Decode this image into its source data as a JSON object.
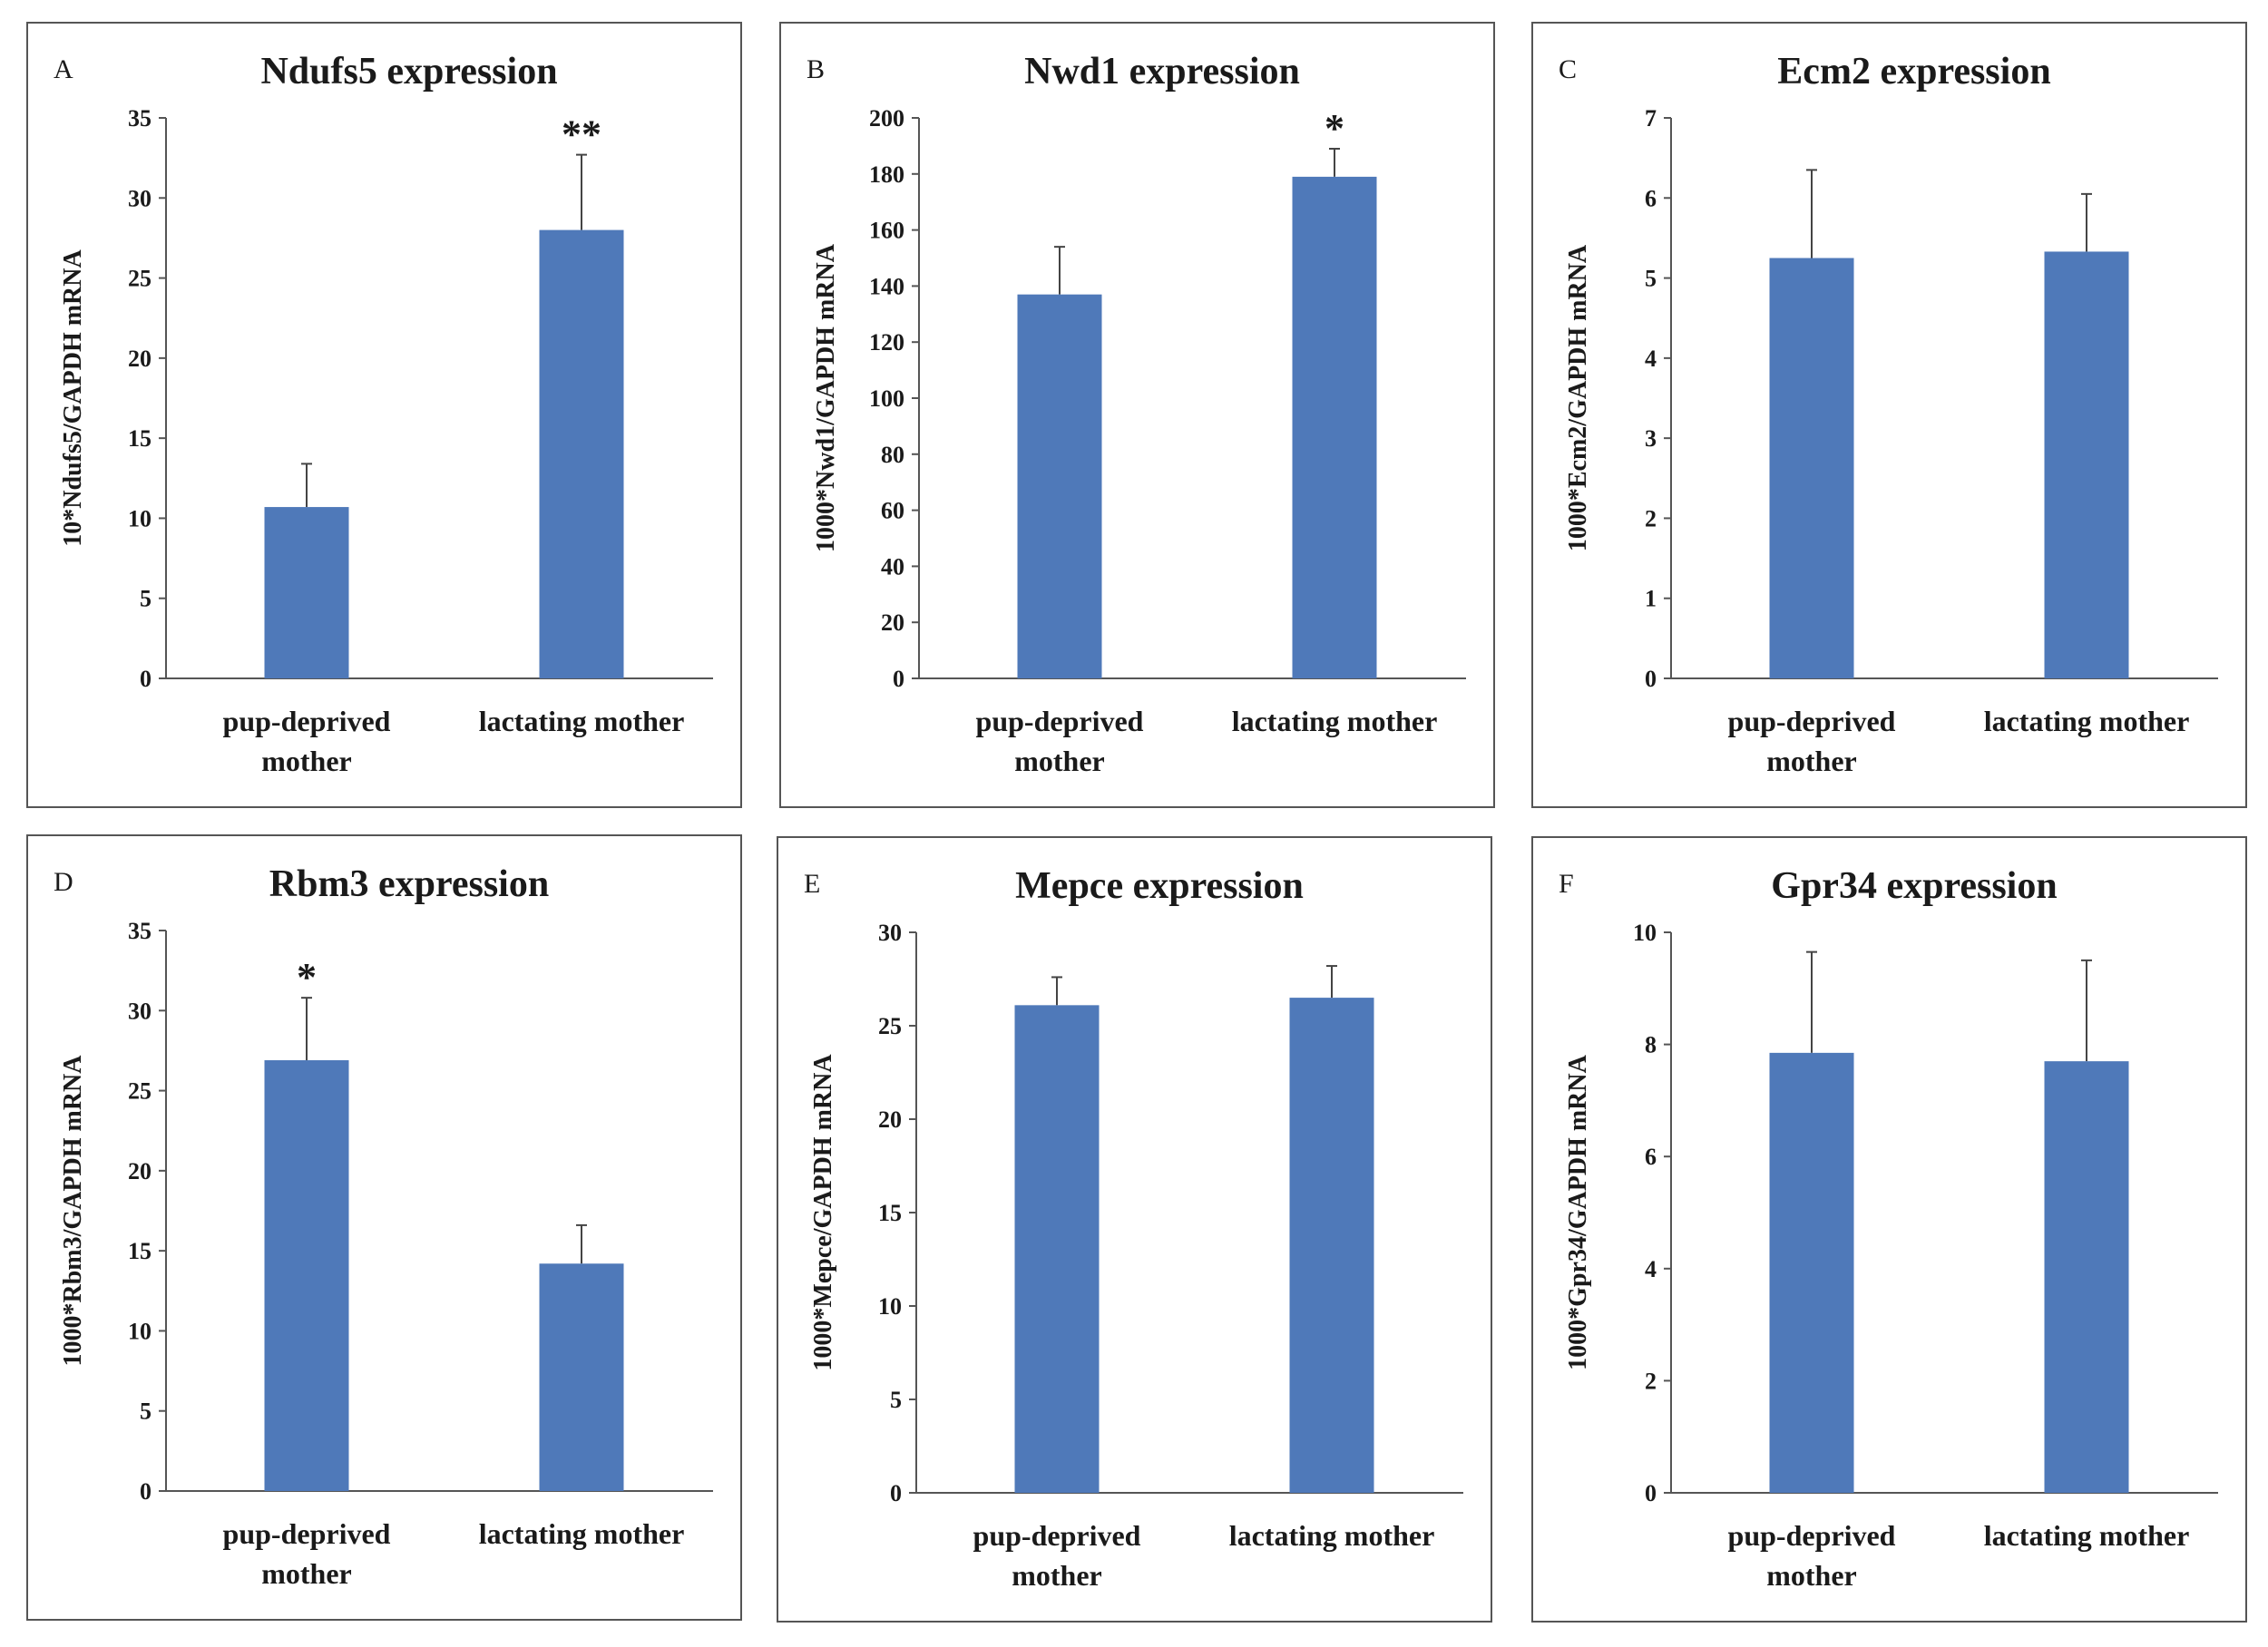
{
  "colors": {
    "bar": "#4f79b9",
    "axis": "#555555",
    "error": "#444444"
  },
  "chart_data": [
    {
      "type": "bar",
      "panel": "A",
      "title": "Ndufs5 expression",
      "ylabel": "10*Ndufs5/GAPDH mRNA",
      "categories": [
        "pup-deprived mother",
        "lactating mother"
      ],
      "category_lines": [
        [
          "pup-deprived",
          "mother"
        ],
        [
          "lactating mother"
        ]
      ],
      "values": [
        10.7,
        28.0
      ],
      "errors": [
        2.7,
        4.7
      ],
      "significance": [
        "",
        "**"
      ],
      "ylim": [
        0,
        35
      ],
      "yticks": [
        0,
        5,
        10,
        15,
        20,
        25,
        30,
        35
      ],
      "grid": false
    },
    {
      "type": "bar",
      "panel": "B",
      "title": "Nwd1 expression",
      "ylabel": "1000*Nwd1/GAPDH mRNA",
      "categories": [
        "pup-deprived mother",
        "lactating mother"
      ],
      "category_lines": [
        [
          "pup-deprived",
          "mother"
        ],
        [
          "lactating mother"
        ]
      ],
      "values": [
        137,
        179
      ],
      "errors": [
        17,
        10
      ],
      "significance": [
        "",
        "*"
      ],
      "ylim": [
        0,
        200
      ],
      "yticks": [
        0,
        20,
        40,
        60,
        80,
        100,
        120,
        140,
        160,
        180,
        200
      ],
      "grid": false
    },
    {
      "type": "bar",
      "panel": "C",
      "title": "Ecm2 expression",
      "ylabel": "1000*Ecm2/GAPDH mRNA",
      "categories": [
        "pup-deprived mother",
        "lactating mother"
      ],
      "category_lines": [
        [
          "pup-deprived",
          "mother"
        ],
        [
          "lactating mother"
        ]
      ],
      "values": [
        5.25,
        5.33
      ],
      "errors": [
        1.1,
        0.72
      ],
      "significance": [
        "",
        ""
      ],
      "ylim": [
        0,
        7
      ],
      "yticks": [
        0,
        1,
        2,
        3,
        4,
        5,
        6,
        7
      ],
      "grid": false
    },
    {
      "type": "bar",
      "panel": "D",
      "title": "Rbm3 expression",
      "ylabel": "1000*Rbm3/GAPDH mRNA",
      "categories": [
        "pup-deprived mother",
        "lactating mother"
      ],
      "category_lines": [
        [
          "pup-deprived",
          "mother"
        ],
        [
          "lactating mother"
        ]
      ],
      "values": [
        26.9,
        14.2
      ],
      "errors": [
        3.9,
        2.4
      ],
      "significance": [
        "*",
        ""
      ],
      "ylim": [
        0,
        35
      ],
      "yticks": [
        0,
        5,
        10,
        15,
        20,
        25,
        30,
        35
      ],
      "grid": false
    },
    {
      "type": "bar",
      "panel": "E",
      "title": "Mepce expression",
      "ylabel": "1000*Mepce/GAPDH mRNA",
      "categories": [
        "pup-deprived mother",
        "lactating mother"
      ],
      "category_lines": [
        [
          "pup-deprived",
          "mother"
        ],
        [
          "lactating mother"
        ]
      ],
      "values": [
        26.1,
        26.5
      ],
      "errors": [
        1.5,
        1.7
      ],
      "significance": [
        "",
        ""
      ],
      "ylim": [
        0,
        30
      ],
      "yticks": [
        0,
        5,
        10,
        15,
        20,
        25,
        30
      ],
      "grid": false
    },
    {
      "type": "bar",
      "panel": "F",
      "title": "Gpr34 expression",
      "ylabel": "1000*Gpr34/GAPDH mRNA",
      "categories": [
        "pup-deprived mother",
        "lactating mother"
      ],
      "category_lines": [
        [
          "pup-deprived",
          "mother"
        ],
        [
          "lactating mother"
        ]
      ],
      "values": [
        7.85,
        7.7
      ],
      "errors": [
        1.8,
        1.8
      ],
      "significance": [
        "",
        ""
      ],
      "ylim": [
        0,
        10
      ],
      "yticks": [
        0,
        2,
        4,
        6,
        8,
        10
      ],
      "grid": false
    }
  ]
}
